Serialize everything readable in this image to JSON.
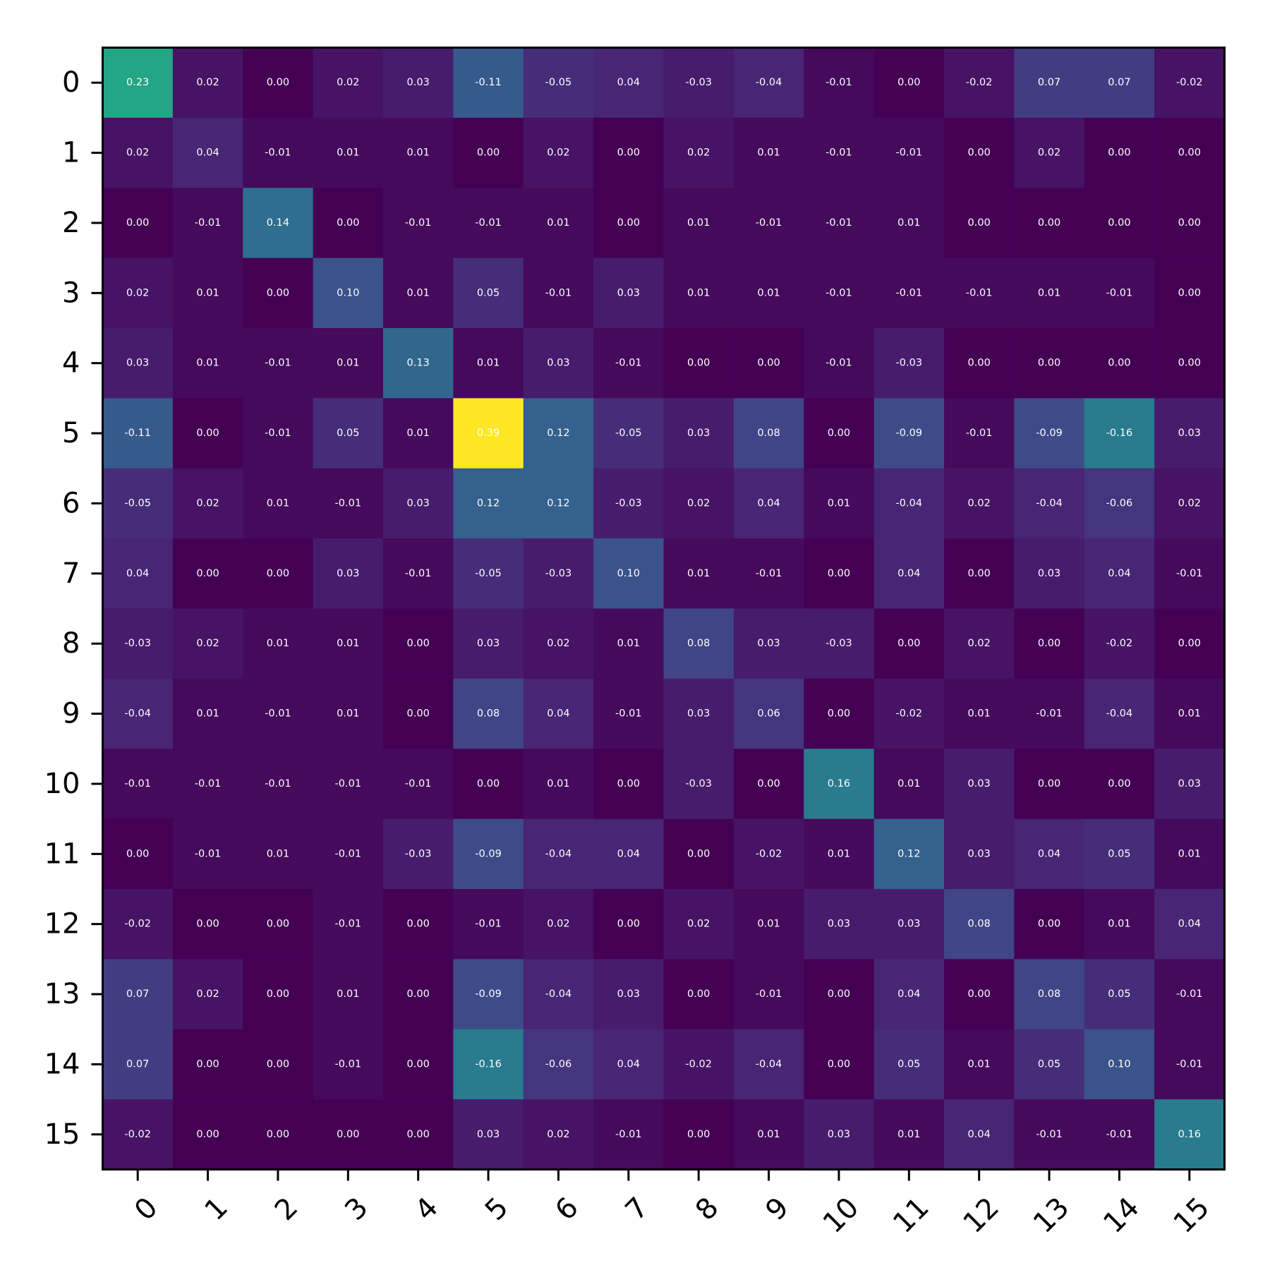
{
  "chart_data": {
    "type": "heatmap",
    "title": "",
    "xlabel": "",
    "ylabel": "",
    "x_tick_labels": [
      "0",
      "1",
      "2",
      "3",
      "4",
      "5",
      "6",
      "7",
      "8",
      "9",
      "10",
      "11",
      "12",
      "13",
      "14",
      "15"
    ],
    "y_tick_labels": [
      "0",
      "1",
      "2",
      "3",
      "4",
      "5",
      "6",
      "7",
      "8",
      "9",
      "10",
      "11",
      "12",
      "13",
      "14",
      "15"
    ],
    "colormap": "viridis",
    "value_range": [
      -0.16,
      0.39
    ],
    "colorscale_mode": "absolute value",
    "value_format": "2 decimals",
    "grid": false,
    "matrix": [
      [
        0.23,
        0.02,
        0.0,
        0.02,
        0.03,
        -0.11,
        -0.05,
        0.04,
        -0.03,
        -0.04,
        -0.01,
        -0.0,
        -0.02,
        0.07,
        0.07,
        -0.02
      ],
      [
        0.02,
        0.04,
        -0.01,
        0.01,
        0.01,
        -0.0,
        0.02,
        -0.0,
        0.02,
        0.01,
        -0.01,
        -0.01,
        0.0,
        0.02,
        0.0,
        -0.0
      ],
      [
        0.0,
        -0.01,
        0.14,
        -0.0,
        -0.01,
        -0.01,
        0.01,
        -0.0,
        0.01,
        -0.01,
        -0.01,
        0.01,
        0.0,
        0.0,
        0.0,
        -0.0
      ],
      [
        0.02,
        0.01,
        -0.0,
        0.1,
        0.01,
        0.05,
        -0.01,
        0.03,
        0.01,
        0.01,
        -0.01,
        -0.01,
        -0.01,
        0.01,
        -0.01,
        0.0
      ],
      [
        0.03,
        0.01,
        -0.01,
        0.01,
        0.13,
        0.01,
        0.03,
        -0.01,
        -0.0,
        -0.0,
        -0.01,
        -0.03,
        -0.0,
        0.0,
        0.0,
        -0.0
      ],
      [
        -0.11,
        -0.0,
        -0.01,
        0.05,
        0.01,
        0.39,
        0.12,
        -0.05,
        0.03,
        0.08,
        -0.0,
        -0.09,
        -0.01,
        -0.09,
        -0.16,
        0.03
      ],
      [
        -0.05,
        0.02,
        0.01,
        -0.01,
        0.03,
        0.12,
        0.12,
        -0.03,
        0.02,
        0.04,
        0.01,
        -0.04,
        0.02,
        -0.04,
        -0.06,
        0.02
      ],
      [
        0.04,
        -0.0,
        -0.0,
        0.03,
        -0.01,
        -0.05,
        -0.03,
        0.1,
        0.01,
        -0.01,
        -0.0,
        0.04,
        0.0,
        0.03,
        0.04,
        -0.01
      ],
      [
        -0.03,
        0.02,
        0.01,
        0.01,
        -0.0,
        0.03,
        0.02,
        0.01,
        0.08,
        0.03,
        -0.03,
        0.0,
        0.02,
        0.0,
        -0.02,
        0.0
      ],
      [
        -0.04,
        0.01,
        -0.01,
        0.01,
        -0.0,
        0.08,
        0.04,
        -0.01,
        0.03,
        0.06,
        -0.0,
        -0.02,
        0.01,
        -0.01,
        -0.04,
        0.01
      ],
      [
        -0.01,
        -0.01,
        -0.01,
        -0.01,
        -0.01,
        -0.0,
        0.01,
        -0.0,
        -0.03,
        -0.0,
        0.16,
        0.01,
        0.03,
        -0.0,
        0.0,
        0.03
      ],
      [
        -0.0,
        -0.01,
        0.01,
        -0.01,
        -0.03,
        -0.09,
        -0.04,
        0.04,
        0.0,
        -0.02,
        0.01,
        0.12,
        0.03,
        0.04,
        0.05,
        0.01
      ],
      [
        -0.02,
        0.0,
        0.0,
        -0.01,
        -0.0,
        -0.01,
        0.02,
        0.0,
        0.02,
        0.01,
        0.03,
        0.03,
        0.08,
        0.0,
        0.01,
        0.04
      ],
      [
        0.07,
        0.02,
        0.0,
        0.01,
        0.0,
        -0.09,
        -0.04,
        0.03,
        0.0,
        -0.01,
        -0.0,
        0.04,
        0.0,
        0.08,
        0.05,
        -0.01
      ],
      [
        0.07,
        0.0,
        0.0,
        -0.01,
        0.0,
        -0.16,
        -0.06,
        0.04,
        -0.02,
        -0.04,
        0.0,
        0.05,
        0.01,
        0.05,
        0.1,
        -0.01
      ],
      [
        -0.02,
        -0.0,
        -0.0,
        0.0,
        -0.0,
        0.03,
        0.02,
        -0.01,
        0.0,
        0.01,
        0.03,
        0.01,
        0.04,
        -0.01,
        -0.01,
        0.16
      ]
    ]
  }
}
